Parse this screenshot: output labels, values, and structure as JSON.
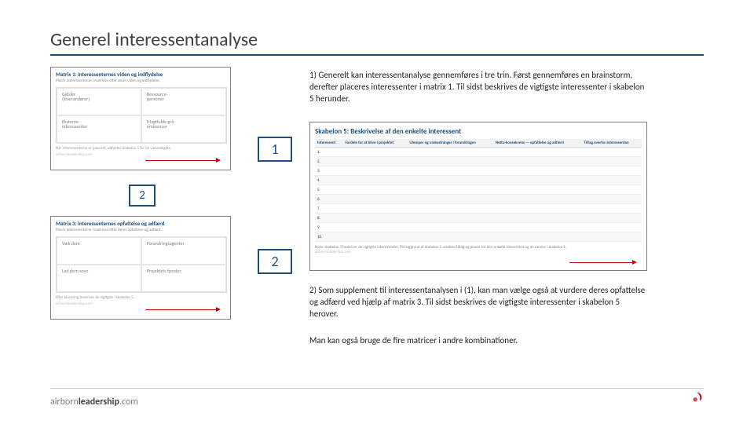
{
  "title": "Generel interessentanalyse",
  "colors": {
    "accent": "#1f4e79",
    "border": "#7f7f7f",
    "red": "#c00000",
    "text": "#333333"
  },
  "text1": "1) Generelt kan interessentanalyse gennemføres i tre trin. Først gennemføres en brainstorm, derefter placeres interessenter i matrix 1. Til sidst beskrives de vigtigste interessenter i skabelon 5 herunder.",
  "text2": "2) Som supplement til interessentanalysen i (1), kan man vælge også at vurdere deres opfattelse og adfærd ved hjælp af matrix 3. Til sidst beskrives de vigtigste interessenter i skabelon 5 herover.",
  "text3": "Man kan også bruge de fire matricer i andre kombinationer.",
  "steps": {
    "one": "1",
    "twoA": "2",
    "twoB": "2"
  },
  "matrix1": {
    "title": "Matrix 1: Interessenternes viden og indflydelse",
    "sub": "Placér interessenterne i matricen efter deres viden og indflydelse.",
    "q": [
      {
        "h": "Gidsler",
        "s": "(leverandører)"
      },
      {
        "h": "Ressource-",
        "s": "personer"
      },
      {
        "h": "Eksterne",
        "s": "interessenter"
      },
      {
        "h": "Magtfulde grå",
        "s": "eminencer"
      }
    ],
    "foot": "Når interessenterne er placeret, udfyldes skabelon 5 for de væsentligste.",
    "brand": "airbornleadership.com"
  },
  "matrix3": {
    "title": "Matrix 3: Interessenternes opfattelse og adfærd",
    "sub": "Placér interessenterne i matricen efter deres opfattelse og adfærd.",
    "q": [
      {
        "h": "Væk dem",
        "s": ""
      },
      {
        "h": "Forandringsagenter",
        "s": ""
      },
      {
        "h": "Lad dem sove",
        "s": ""
      },
      {
        "h": "Projektets fjender",
        "s": ""
      }
    ],
    "foot": "Efter placering beskrives de vigtigste i skabelon 5.",
    "brand": "airbornleadership.com"
  },
  "skabelon5": {
    "title": "Skabelon 5: Beskrivelse af den enkelte interessent",
    "cols": [
      "Interessent",
      "Fordele for at blive i projektet",
      "Ulemper og omkostninger i forandringen",
      "Netto-konsekvens — opfattelse og adfærd",
      "Tiltag overfor interessenten"
    ],
    "rows": [
      "1.",
      "2.",
      "3.",
      "4.",
      "5.",
      "6.",
      "7.",
      "8.",
      "9.",
      "10."
    ],
    "foot": "Note: skabelon 5 beskriver de vigtigste interessenter. På baggrund af skabelon 5 udvikles tiltag og planer for den enkelte interessent og de samles i skabelon 6.",
    "brand": "airbornleadership.com"
  },
  "footerBrand": {
    "a": "airborn",
    "b": "leadership",
    "c": ".com"
  }
}
